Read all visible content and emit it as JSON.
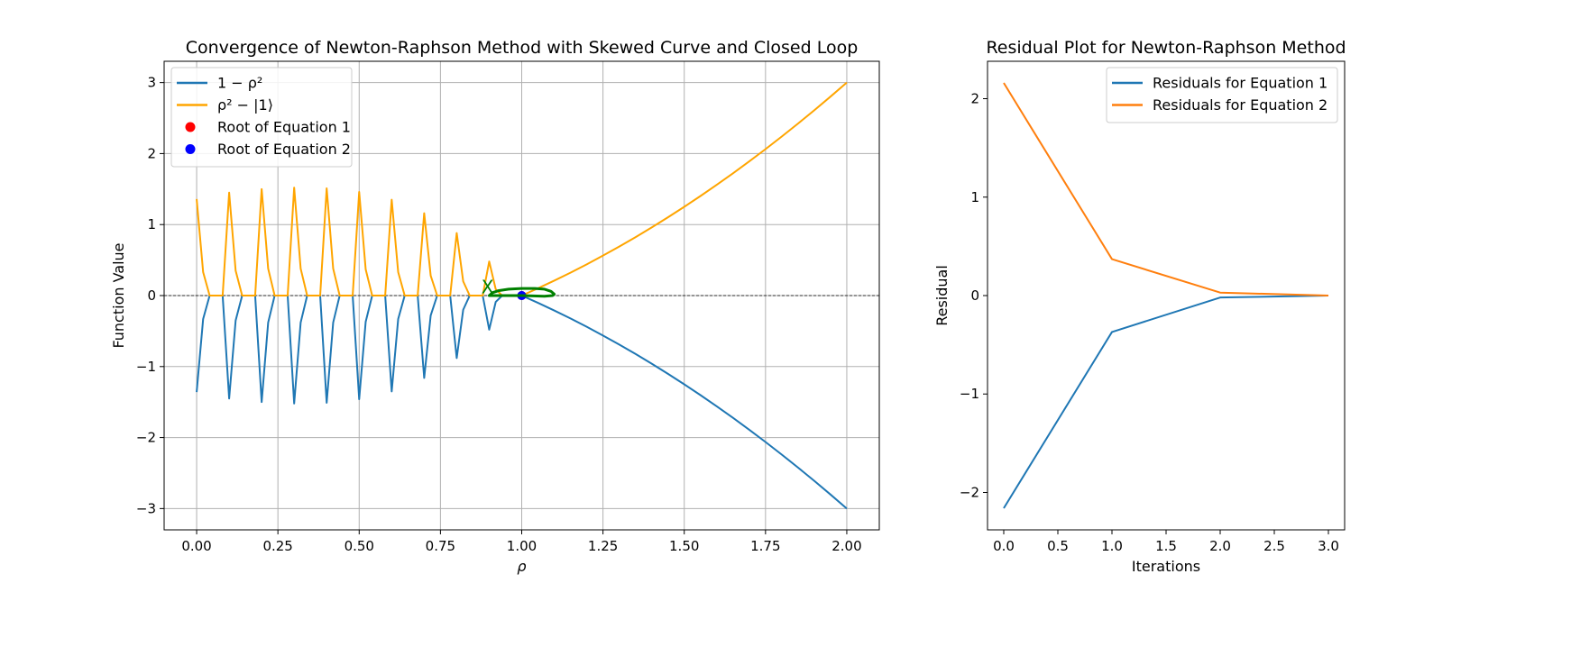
{
  "chart_data": [
    {
      "type": "line",
      "title": "Convergence of Newton-Raphson Method with Skewed Curve and Closed Loop",
      "xlabel": "ρ",
      "ylabel": "Function Value",
      "xlim": [
        -0.1,
        2.1
      ],
      "ylim": [
        -3.3,
        3.3
      ],
      "xticks": [
        0.0,
        0.25,
        0.5,
        0.75,
        1.0,
        1.25,
        1.5,
        1.75,
        2.0
      ],
      "xtick_labels": [
        "0.00",
        "0.25",
        "0.50",
        "0.75",
        "1.00",
        "1.25",
        "1.50",
        "1.75",
        "2.00"
      ],
      "yticks": [
        -3,
        -2,
        -1,
        0,
        1,
        2,
        3
      ],
      "ytick_labels": [
        "−3",
        "−2",
        "−1",
        "0",
        "1",
        "2",
        "3"
      ],
      "grid": true,
      "legend_position": "top-left",
      "reference_line_y": 0,
      "series": [
        {
          "name": "1 − ρ²",
          "color": "#1f77b4",
          "x": [
            0.0,
            0.02,
            0.04,
            0.06,
            0.08,
            0.1,
            0.12,
            0.14,
            0.16,
            0.18,
            0.2,
            0.22,
            0.24,
            0.26,
            0.28,
            0.3,
            0.32,
            0.34,
            0.36,
            0.38,
            0.4,
            0.42,
            0.44,
            0.46,
            0.48,
            0.5,
            0.52,
            0.54,
            0.56,
            0.58,
            0.6,
            0.62,
            0.64,
            0.66,
            0.68,
            0.7,
            0.72,
            0.74,
            0.76,
            0.78,
            0.8,
            0.82,
            0.84,
            0.86,
            0.88,
            0.9,
            0.92,
            0.94,
            0.96,
            0.98,
            1.0,
            1.05,
            1.1,
            1.15,
            1.2,
            1.25,
            1.3,
            1.35,
            1.4,
            1.45,
            1.5,
            1.55,
            1.6,
            1.65,
            1.7,
            1.75,
            1.8,
            1.85,
            1.9,
            1.95,
            2.0
          ],
          "y": [
            -1.36,
            -0.33,
            0,
            0,
            0,
            -1.45,
            -0.35,
            0,
            0,
            0,
            -1.5,
            -0.38,
            0,
            0,
            0,
            -1.52,
            -0.38,
            0,
            0,
            0,
            -1.51,
            -0.38,
            0,
            0,
            0,
            -1.46,
            -0.37,
            0,
            0,
            0,
            -1.35,
            -0.33,
            0,
            0,
            0,
            -1.16,
            -0.28,
            0,
            0,
            0,
            -0.88,
            -0.2,
            0,
            0,
            0,
            -0.48,
            -0.09,
            0,
            0,
            0,
            0,
            -0.1025,
            -0.21,
            -0.3225,
            -0.44,
            -0.5625,
            -0.69,
            -0.8225,
            -0.96,
            -1.1025,
            -1.25,
            -1.4025,
            -1.56,
            -1.7225,
            -1.89,
            -2.0625,
            -2.24,
            -2.4225,
            -2.61,
            -2.8025,
            -3.0
          ]
        },
        {
          "name": "ρ² − |1⟩",
          "color": "#ffa500",
          "x": [
            0.0,
            0.02,
            0.04,
            0.06,
            0.08,
            0.1,
            0.12,
            0.14,
            0.16,
            0.18,
            0.2,
            0.22,
            0.24,
            0.26,
            0.28,
            0.3,
            0.32,
            0.34,
            0.36,
            0.38,
            0.4,
            0.42,
            0.44,
            0.46,
            0.48,
            0.5,
            0.52,
            0.54,
            0.56,
            0.58,
            0.6,
            0.62,
            0.64,
            0.66,
            0.68,
            0.7,
            0.72,
            0.74,
            0.76,
            0.78,
            0.8,
            0.82,
            0.84,
            0.86,
            0.88,
            0.9,
            0.92,
            0.94,
            0.96,
            0.98,
            1.0,
            1.05,
            1.1,
            1.15,
            1.2,
            1.25,
            1.3,
            1.35,
            1.4,
            1.45,
            1.5,
            1.55,
            1.6,
            1.65,
            1.7,
            1.75,
            1.8,
            1.85,
            1.9,
            1.95,
            2.0
          ],
          "y": [
            1.36,
            0.33,
            0,
            0,
            0,
            1.45,
            0.35,
            0,
            0,
            0,
            1.5,
            0.38,
            0,
            0,
            0,
            1.52,
            0.38,
            0,
            0,
            0,
            1.51,
            0.38,
            0,
            0,
            0,
            1.46,
            0.37,
            0,
            0,
            0,
            1.35,
            0.33,
            0,
            0,
            0,
            1.16,
            0.28,
            0,
            0,
            0,
            0.88,
            0.2,
            0,
            0,
            0,
            0.48,
            0.09,
            0,
            0,
            0,
            0,
            0.1025,
            0.21,
            0.3225,
            0.44,
            0.5625,
            0.69,
            0.8225,
            0.96,
            1.1025,
            1.25,
            1.4025,
            1.56,
            1.7225,
            1.89,
            2.0625,
            2.24,
            2.4225,
            2.61,
            2.8025,
            3.0
          ]
        },
        {
          "name": "Root of Equation 1",
          "type": "scatter",
          "color": "#ff0000",
          "x": [
            1.0
          ],
          "y": [
            0.0
          ]
        },
        {
          "name": "Root of Equation 2",
          "type": "scatter",
          "color": "#0000ff",
          "x": [
            1.0
          ],
          "y": [
            0.0
          ]
        }
      ],
      "annotations": [
        {
          "kind": "closed-loop",
          "color": "#008000",
          "x": [
            0.9,
            0.91,
            0.93,
            0.96,
            1.0,
            1.04,
            1.07,
            1.09,
            1.1,
            1.095,
            1.07,
            1.035,
            1.0
          ],
          "y": [
            0.0,
            0.04,
            0.07,
            0.09,
            0.1,
            0.1,
            0.09,
            0.06,
            0.02,
            0.0,
            -0.01,
            -0.005,
            0.0
          ]
        },
        {
          "kind": "marker",
          "text": "X",
          "color": "#008000",
          "x": 0.895,
          "y": 0.12
        }
      ]
    },
    {
      "type": "line",
      "title": "Residual Plot for Newton-Raphson Method",
      "xlabel": "Iterations",
      "ylabel": "Residual",
      "xlim": [
        -0.15,
        3.15
      ],
      "ylim": [
        -2.38,
        2.38
      ],
      "xticks": [
        0.0,
        0.5,
        1.0,
        1.5,
        2.0,
        2.5,
        3.0
      ],
      "xtick_labels": [
        "0.0",
        "0.5",
        "1.0",
        "1.5",
        "2.0",
        "2.5",
        "3.0"
      ],
      "yticks": [
        -2,
        -1,
        0,
        1,
        2
      ],
      "ytick_labels": [
        "−2",
        "−1",
        "0",
        "1",
        "2"
      ],
      "grid": false,
      "legend_position": "top-right",
      "series": [
        {
          "name": "Residuals for Equation 1",
          "color": "#1f77b4",
          "x": [
            0,
            1,
            2,
            3
          ],
          "y": [
            -2.16,
            -0.37,
            -0.02,
            0.0
          ]
        },
        {
          "name": "Residuals for Equation 2",
          "color": "#ff7f0e",
          "x": [
            0,
            1,
            2,
            3
          ],
          "y": [
            2.16,
            0.37,
            0.03,
            0.0
          ]
        }
      ]
    }
  ]
}
